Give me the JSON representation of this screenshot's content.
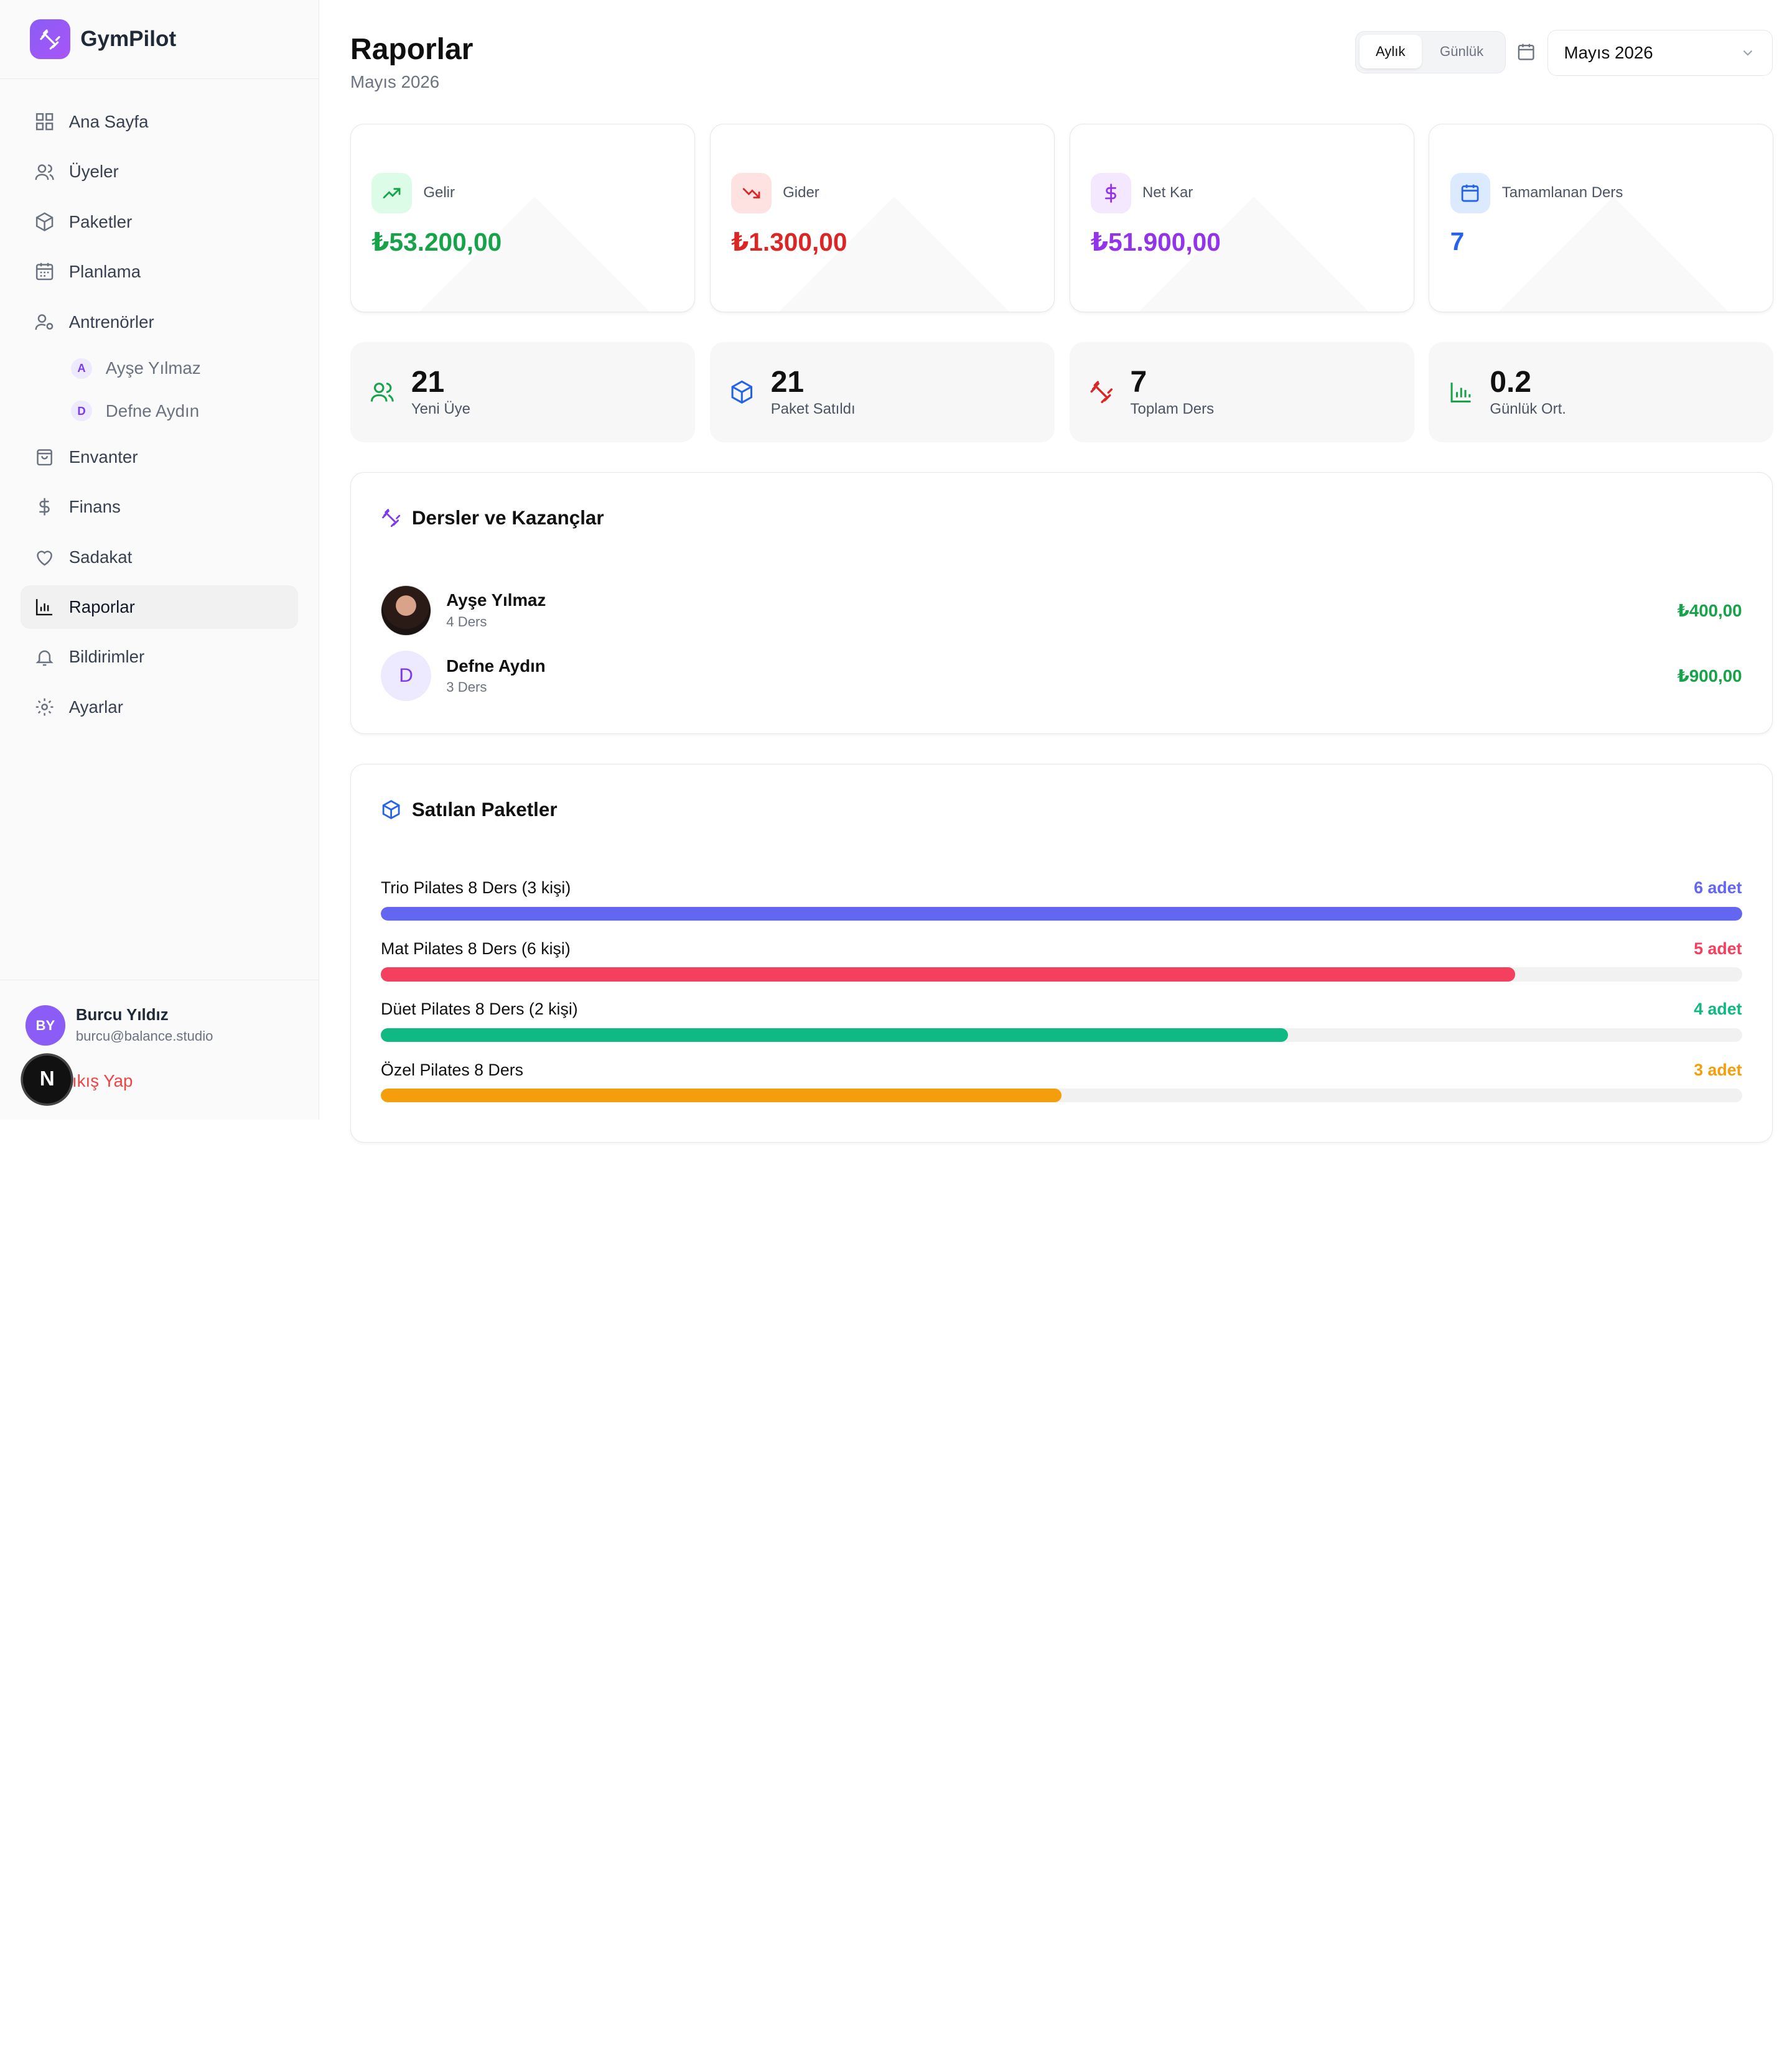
{
  "brand": {
    "name": "GymPilot",
    "logo_icon": "dumbbell-icon"
  },
  "sidebar": {
    "items": [
      {
        "label": "Ana Sayfa",
        "icon": "dashboard-icon"
      },
      {
        "label": "Üyeler",
        "icon": "users-icon"
      },
      {
        "label": "Paketler",
        "icon": "package-icon"
      },
      {
        "label": "Planlama",
        "icon": "calendar-icon"
      },
      {
        "label": "Antrenörler",
        "icon": "trainer-icon"
      },
      {
        "label": "Envanter",
        "icon": "bag-icon"
      },
      {
        "label": "Finans",
        "icon": "dollar-icon"
      },
      {
        "label": "Sadakat",
        "icon": "heart-icon"
      },
      {
        "label": "Raporlar",
        "icon": "bar-chart-icon",
        "active": true
      },
      {
        "label": "Bildirimler",
        "icon": "bell-icon"
      },
      {
        "label": "Ayarlar",
        "icon": "gear-icon"
      }
    ],
    "trainers": [
      {
        "initial": "A",
        "name": "Ayşe Yılmaz"
      },
      {
        "initial": "D",
        "name": "Defne Aydın"
      }
    ],
    "user": {
      "initials": "BY",
      "name": "Burcu Yıldız",
      "email": "burcu@balance.studio"
    },
    "logout_label": "Çıkış Yap",
    "dev_badge": "N"
  },
  "header": {
    "title": "Raporlar",
    "subtitle": "Mayıs 2026",
    "toggle": {
      "monthly": "Aylık",
      "daily": "Günlük",
      "active": "monthly"
    },
    "month_select": "Mayıs 2026"
  },
  "stats": [
    {
      "label": "Gelir",
      "value": "₺53.200,00",
      "color": "#16a34a",
      "bg": "#dcfce7",
      "icon": "trending-up-icon"
    },
    {
      "label": "Gider",
      "value": "₺1.300,00",
      "color": "#dc2626",
      "bg": "#fee2e2",
      "icon": "trending-down-icon"
    },
    {
      "label": "Net Kar",
      "value": "₺51.900,00",
      "color": "#9333ea",
      "bg": "#f3e8ff",
      "icon": "dollar-icon"
    },
    {
      "label": "Tamamlanan Ders",
      "value": "7",
      "color": "#2563eb",
      "bg": "#dbeafe",
      "icon": "calendar-icon"
    }
  ],
  "mini_stats": [
    {
      "value": "21",
      "label": "Yeni Üye",
      "color": "#16a34a",
      "icon": "users-icon"
    },
    {
      "value": "21",
      "label": "Paket Satıldı",
      "color": "#2563eb",
      "icon": "package-icon"
    },
    {
      "value": "7",
      "label": "Toplam Ders",
      "color": "#dc2626",
      "icon": "dumbbell-icon"
    },
    {
      "value": "0.2",
      "label": "Günlük Ort.",
      "color": "#16a34a",
      "icon": "bar-chart-icon"
    }
  ],
  "lessons_panel": {
    "title": "Dersler ve Kazançlar",
    "rows": [
      {
        "name": "Ayşe Yılmaz",
        "sub": "4 Ders",
        "amount": "₺400,00",
        "avatar": "photo"
      },
      {
        "name": "Defne Aydın",
        "sub": "3 Ders",
        "amount": "₺900,00",
        "avatar": "D"
      }
    ]
  },
  "packages_panel": {
    "title": "Satılan Paketler",
    "rows": [
      {
        "name": "Trio Pilates 8 Ders (3 kişi)",
        "count": "6 adet",
        "fraction": 1.0,
        "color": "#6366f1"
      },
      {
        "name": "Mat Pilates 8 Ders (6 kişi)",
        "count": "5 adet",
        "fraction": 0.8333,
        "color": "#f43f5e"
      },
      {
        "name": "Düet Pilates 8 Ders (2 kişi)",
        "count": "4 adet",
        "fraction": 0.6667,
        "color": "#10b981"
      },
      {
        "name": "Özel Pilates 8 Ders",
        "count": "3 adet",
        "fraction": 0.5,
        "color": "#f59e0b"
      }
    ]
  }
}
